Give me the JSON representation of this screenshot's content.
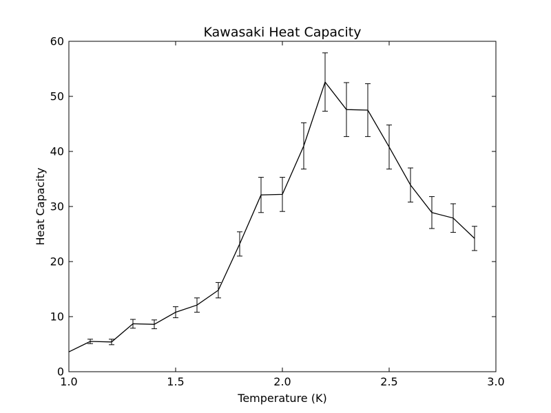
{
  "chart_data": {
    "type": "line",
    "title": "Kawasaki Heat Capacity",
    "xlabel": "Temperature (K)",
    "ylabel": "Heat Capacity",
    "xlim": [
      1.0,
      3.0
    ],
    "ylim": [
      0,
      60
    ],
    "xticks": [
      "1.0",
      "1.5",
      "2.0",
      "2.5",
      "3.0"
    ],
    "yticks": [
      "0",
      "10",
      "20",
      "30",
      "40",
      "50",
      "60"
    ],
    "grid": false,
    "line_color": "#000000",
    "series": [
      {
        "x": [
          1.0,
          1.1,
          1.2,
          1.3,
          1.4,
          1.5,
          1.6,
          1.7,
          1.8,
          1.9,
          2.0,
          2.1,
          2.2,
          2.3,
          2.4,
          2.5,
          2.6,
          2.7,
          2.8,
          2.9
        ],
        "y": [
          3.6,
          5.5,
          5.4,
          8.7,
          8.6,
          10.8,
          12.1,
          14.8,
          23.2,
          32.1,
          32.2,
          41.0,
          52.6,
          47.6,
          47.5,
          40.8,
          33.9,
          28.9,
          27.9,
          24.2
        ],
        "err": [
          0.0,
          0.4,
          0.5,
          0.8,
          0.8,
          1.0,
          1.3,
          1.4,
          2.2,
          3.2,
          3.1,
          4.2,
          5.3,
          4.9,
          4.8,
          4.0,
          3.1,
          2.9,
          2.6,
          2.2
        ]
      }
    ]
  }
}
